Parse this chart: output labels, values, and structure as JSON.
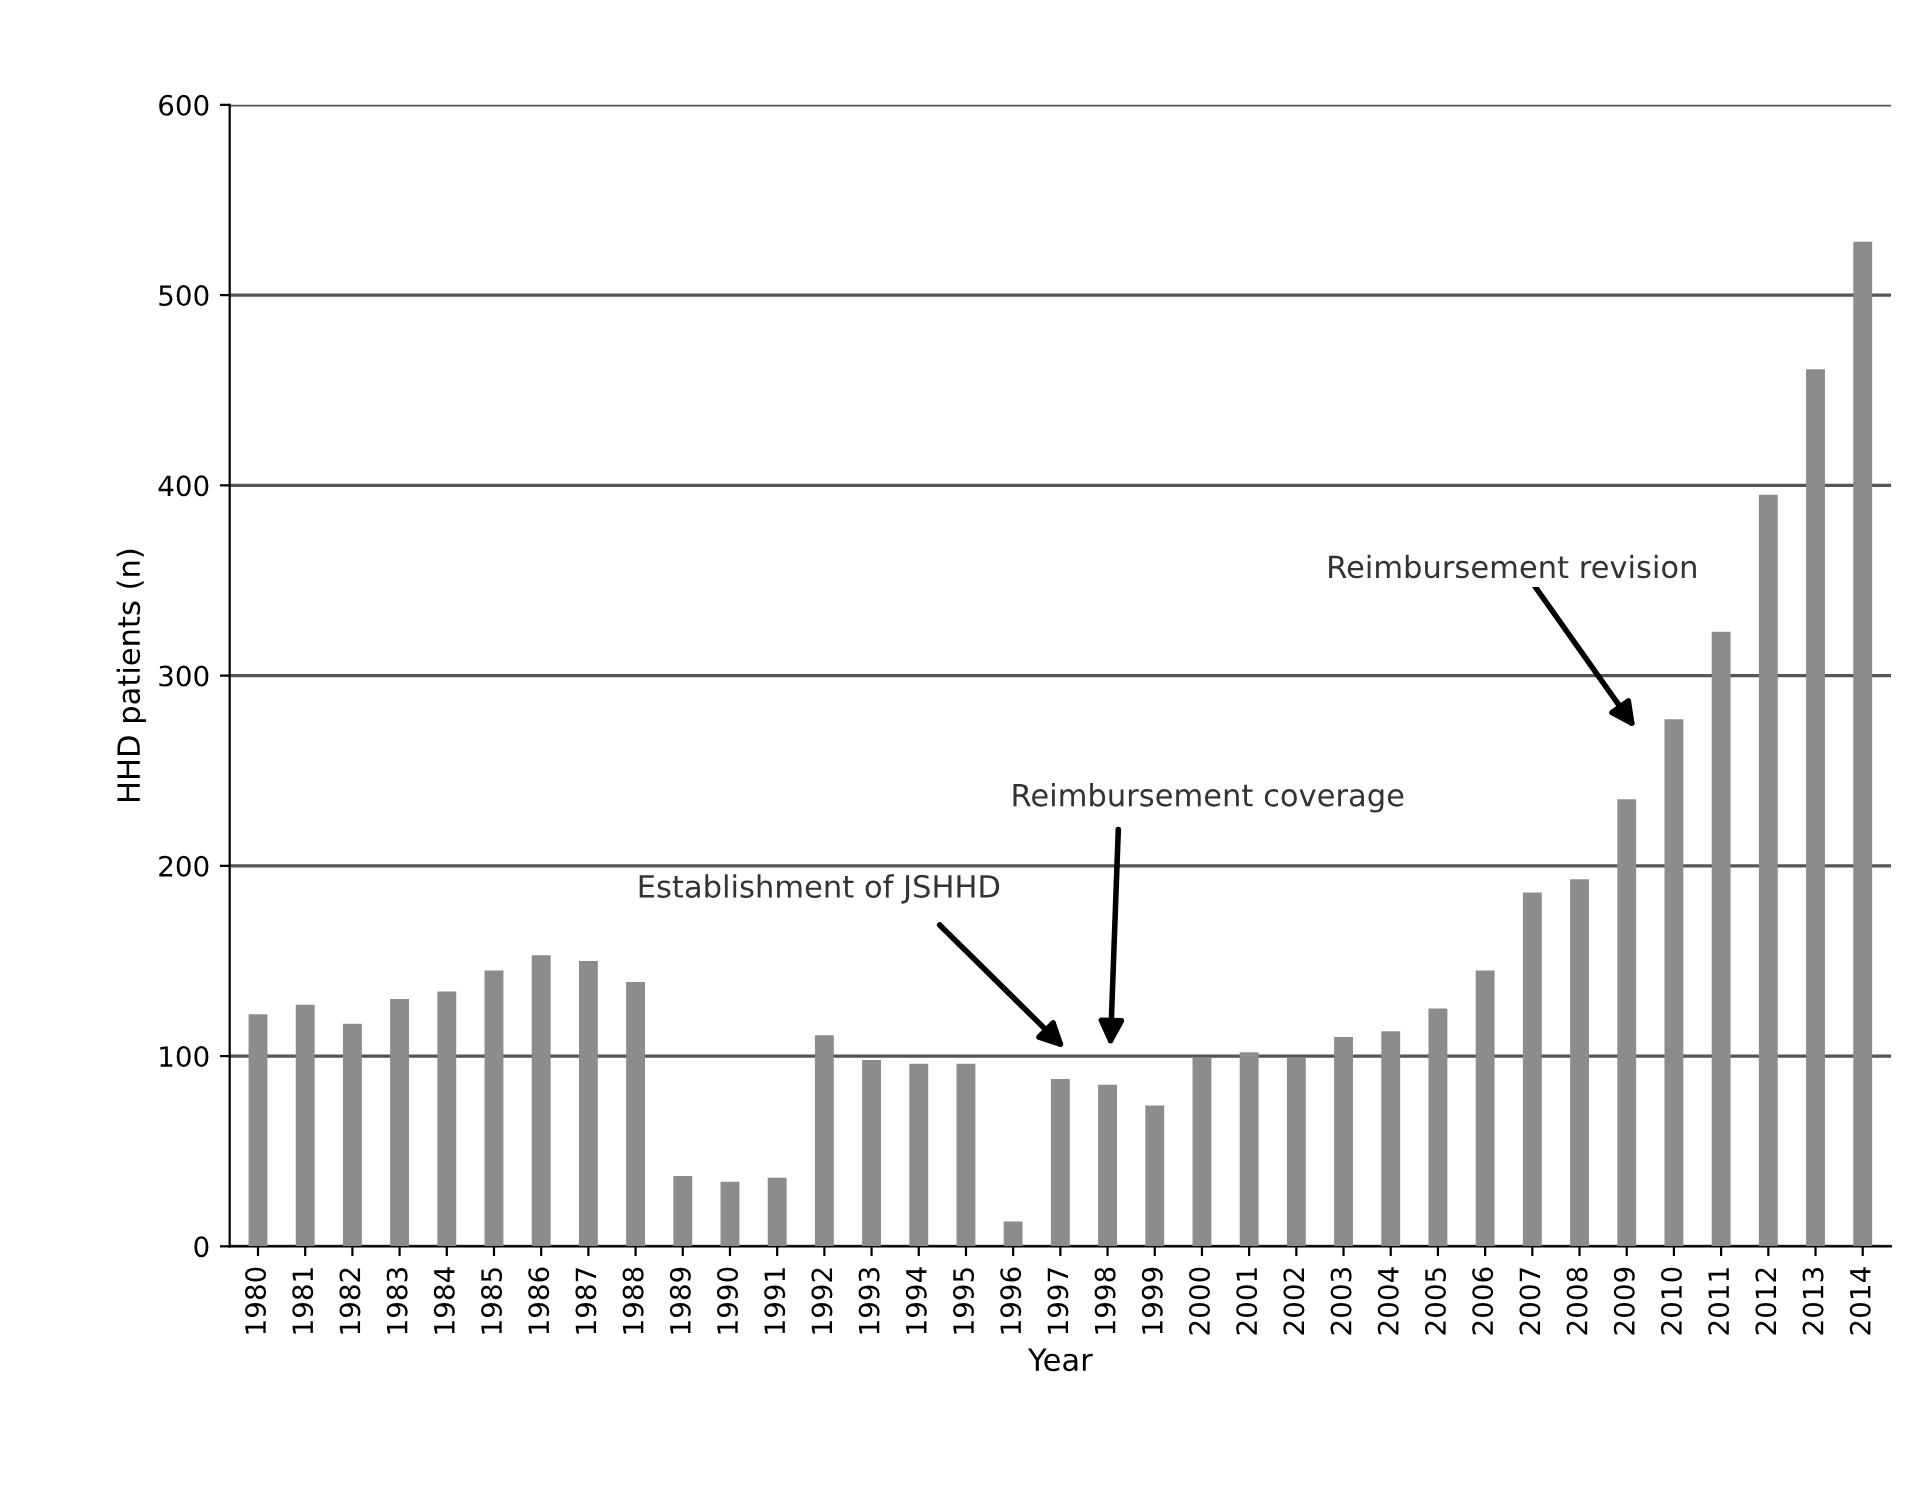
{
  "chart_data": {
    "type": "bar",
    "xlabel": "Year",
    "ylabel": "HHD patients (n)",
    "categories": [
      "1980",
      "1981",
      "1982",
      "1983",
      "1984",
      "1985",
      "1986",
      "1987",
      "1988",
      "1989",
      "1990",
      "1991",
      "1992",
      "1993",
      "1994",
      "1995",
      "1996",
      "1997",
      "1998",
      "1999",
      "2000",
      "2001",
      "2002",
      "2003",
      "2004",
      "2005",
      "2006",
      "2007",
      "2008",
      "2009",
      "2010",
      "2011",
      "2012",
      "2013",
      "2014"
    ],
    "values": [
      122,
      127,
      117,
      130,
      134,
      145,
      153,
      150,
      139,
      37,
      34,
      36,
      111,
      98,
      96,
      96,
      13,
      88,
      85,
      74,
      99,
      102,
      99,
      110,
      113,
      125,
      145,
      186,
      193,
      235,
      277,
      323,
      395,
      461,
      528
    ],
    "color": "#8c8c8c",
    "ylim": [
      0,
      600
    ],
    "yticks": [
      0,
      100,
      200,
      300,
      400,
      500,
      600
    ],
    "grid": "y",
    "annotations": [
      "Establishment of JSHHD",
      "Reimbursement coverage",
      "Reimbursement revision"
    ]
  }
}
